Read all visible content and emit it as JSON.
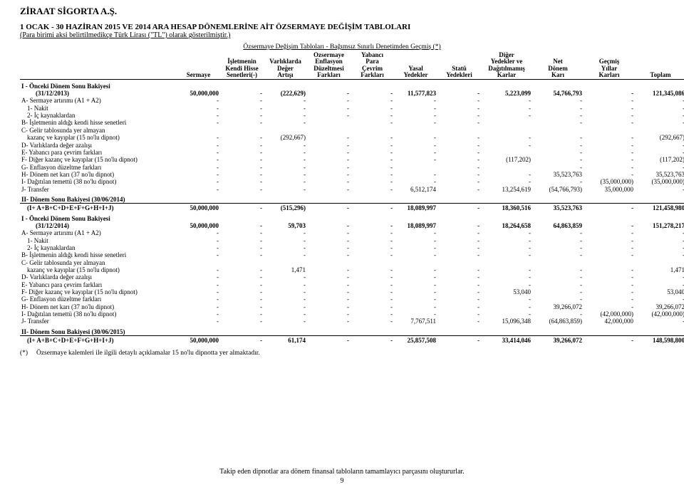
{
  "company": "ZİRAAT SİGORTA A.Ş.",
  "title": "1 OCAK - 30 HAZİRAN 2015 VE 2014 ARA HESAP DÖNEMLERİNE AİT ÖZSERMAYE DEĞİŞİM TABLOLARI",
  "subtitle": "(Para birimi aksi belirtilmedikçe Türk Lirası (\"TL\") olarak gösterilmiştir.)",
  "caption": "Özsermaye Değişim Tabloları - Bağımsız Sınırlı Denetimden Geçmiş (*)",
  "columns": [
    {
      "l1": "",
      "l2": "",
      "l3": "",
      "l4": "Sermaye"
    },
    {
      "l1": "",
      "l2": "İşletmenin",
      "l3": "Kendi Hisse",
      "l4": "Senetleri(-)"
    },
    {
      "l1": "",
      "l2": "Varlıklarda",
      "l3": "Değer",
      "l4": "Artışı"
    },
    {
      "l1": "Özsermaye",
      "l2": "Enflasyon",
      "l3": "Düzeltmesi",
      "l4": "Farkları"
    },
    {
      "l1": "Yabancı",
      "l2": "Para",
      "l3": "Çevrim",
      "l4": "Farkları"
    },
    {
      "l1": "",
      "l2": "",
      "l3": "Yasal",
      "l4": "Yedekler"
    },
    {
      "l1": "",
      "l2": "",
      "l3": "Statü",
      "l4": "Yedekleri"
    },
    {
      "l1": "Diğer",
      "l2": "Yedekler ve",
      "l3": "Dağıtılmamış",
      "l4": "Karlar"
    },
    {
      "l1": "",
      "l2": "Net",
      "l3": "Dönem",
      "l4": "Karı"
    },
    {
      "l1": "",
      "l2": "Geçmiş",
      "l3": "Yıllar",
      "l4": "Karları"
    },
    {
      "l1": "",
      "l2": "",
      "l3": "",
      "l4": "Toplam"
    }
  ],
  "rows": [
    {
      "type": "sec",
      "label": "I -   Önceki Dönem Sonu Bakiyesi"
    },
    {
      "type": "d",
      "indent": 2,
      "bold": true,
      "label": "(31/12/2013)",
      "v": [
        "50,000,000",
        "-",
        "(222,629)",
        "-",
        "-",
        "11,577,823",
        "-",
        "5,223,099",
        "54,766,793",
        "-",
        "121,345,086"
      ]
    },
    {
      "type": "d",
      "label": "A-  Sermaye artırımı (A1 + A2)",
      "v": [
        "-",
        "-",
        "-",
        "-",
        "-",
        "-",
        "-",
        "-",
        "-",
        "-",
        "-"
      ]
    },
    {
      "type": "d",
      "indent": 1,
      "label": "1-   Nakit",
      "v": [
        "-",
        "-",
        "-",
        "-",
        "-",
        "-",
        "-",
        "-",
        "-",
        "-",
        "-"
      ]
    },
    {
      "type": "d",
      "indent": 1,
      "label": "2-   İç kaynaklardan",
      "v": [
        "-",
        "-",
        "-",
        "-",
        "-",
        "-",
        "-",
        "-",
        "-",
        "-",
        "-"
      ]
    },
    {
      "type": "d",
      "label": "B-  İşletmenin aldığı kendi hisse senetleri",
      "v": [
        "-",
        "-",
        "-",
        "",
        "-",
        "-",
        "-",
        "",
        "-",
        "-",
        "-"
      ]
    },
    {
      "type": "d",
      "label": "C-  Gelir tablosunda yer almayan",
      "v": [
        "",
        "",
        "",
        "",
        "",
        "",
        "",
        "",
        "",
        "",
        ""
      ]
    },
    {
      "type": "d",
      "indent": 1,
      "label": "kazanç ve kayıplar (15 no'lu dipnot)",
      "v": [
        "-",
        "-",
        "(292,667)",
        "-",
        "-",
        "-",
        "-",
        "-",
        "-",
        "-",
        "(292,667)"
      ]
    },
    {
      "type": "d",
      "label": "D-  Varlıklarda değer azalışı",
      "v": [
        "-",
        "-",
        "-",
        "-",
        "-",
        "-",
        "-",
        "-",
        "-",
        "-",
        "-"
      ]
    },
    {
      "type": "d",
      "label": "E-  Yabancı para çevrim farkları",
      "v": [
        "-",
        "-",
        "-",
        "-",
        "-",
        "-",
        "-",
        "",
        "-",
        "-",
        "-"
      ]
    },
    {
      "type": "d",
      "label": "F-  Diğer kazanç ve kayıplar (15 no'lu dipnot)",
      "v": [
        "-",
        "-",
        "-",
        "-",
        "-",
        "-",
        "-",
        "(117,202)",
        "-",
        "-",
        "(117,202)"
      ]
    },
    {
      "type": "d",
      "label": "G-  Enflasyon düzeltme farkları",
      "v": [
        "-",
        "-",
        "-",
        "-",
        "-",
        "",
        "-",
        "",
        "-",
        "-",
        "-"
      ]
    },
    {
      "type": "d",
      "label": "H-  Dönem net karı (37 no'lu dipnot)",
      "v": [
        "-",
        "-",
        "-",
        "-",
        "-",
        "-",
        "-",
        "-",
        "35,523,763",
        "-",
        "35,523,763"
      ]
    },
    {
      "type": "d",
      "label": "I-   Dağıtılan temettü (38 no'lu dipnot)",
      "v": [
        "-",
        "-",
        "-",
        "-",
        "-",
        "-",
        "-",
        "-",
        "-",
        "(35,000,000)",
        "(35,000,000)"
      ]
    },
    {
      "type": "d",
      "label": "J-   Transfer",
      "v": [
        "-",
        "-",
        "-",
        "-",
        "-",
        "6,512,174",
        "-",
        "13,254,619",
        "(54,766,793)",
        "35,000,000",
        "-"
      ]
    },
    {
      "type": "sec",
      "label": "II-  Dönem Sonu Bakiyesi (30/06/2014)"
    },
    {
      "type": "sum",
      "indent": 1,
      "label": "(I+ A+B+C+D+E+F+G+H+I+J)",
      "v": [
        "50,000,000",
        "-",
        "(515,296)",
        "-",
        "-",
        "18,089,997",
        "-",
        "18,360,516",
        "35,523,763",
        "-",
        "121,458,980"
      ]
    },
    {
      "type": "sec",
      "label": "I -   Önceki Dönem Sonu Bakiyesi"
    },
    {
      "type": "d",
      "indent": 2,
      "bold": true,
      "label": "(31/12/2014)",
      "v": [
        "50,000,000",
        "-",
        "59,703",
        "-",
        "-",
        "18,089,997",
        "-",
        "18,264,658",
        "64,863,859",
        "-",
        "151,278,217"
      ]
    },
    {
      "type": "d",
      "label": "A-  Sermaye artırımı (A1 + A2)",
      "v": [
        "-",
        "-",
        "-",
        "-",
        "-",
        "-",
        "-",
        "-",
        "-",
        "-",
        "-"
      ]
    },
    {
      "type": "d",
      "indent": 1,
      "label": "1-   Nakit",
      "v": [
        "-",
        "-",
        "-",
        "-",
        "-",
        "-",
        "-",
        "-",
        "-",
        "-",
        "-"
      ]
    },
    {
      "type": "d",
      "indent": 1,
      "label": "2-   İç kaynaklardan",
      "v": [
        "-",
        "-",
        "-",
        "-",
        "-",
        "-",
        "-",
        "-",
        "-",
        "-",
        "-"
      ]
    },
    {
      "type": "d",
      "label": "B-  İşletmenin aldığı kendi hisse senetleri",
      "v": [
        "-",
        "-",
        "-",
        "-",
        "-",
        "-",
        "-",
        "-",
        "-",
        "-",
        "-"
      ]
    },
    {
      "type": "d",
      "label": "C-  Gelir tablosunda yer almayan",
      "v": [
        "",
        "",
        "",
        "",
        "",
        "",
        "",
        "",
        "",
        "",
        ""
      ]
    },
    {
      "type": "d",
      "indent": 1,
      "label": "kazanç ve kayıplar (15 no'lu dipnot)",
      "v": [
        "-",
        "-",
        "1,471",
        "-",
        "-",
        "-",
        "-",
        "-",
        "-",
        "-",
        "1,471"
      ]
    },
    {
      "type": "d",
      "label": "D-  Varlıklarda değer azalışı",
      "v": [
        "-",
        "-",
        "-",
        "-",
        "-",
        "-",
        "-",
        "-",
        "-",
        "-",
        "-"
      ]
    },
    {
      "type": "d",
      "label": "E-  Yabancı para çevrim farkları",
      "v": [
        "-",
        "-",
        "-",
        "-",
        "-",
        "-",
        "-",
        "-",
        "-",
        "-",
        "-"
      ]
    },
    {
      "type": "d",
      "label": "F-  Diğer kazanç ve kayıplar (15 no'lu dipnot)",
      "v": [
        "-",
        "-",
        "-",
        "-",
        "-",
        "-",
        "-",
        "53,040",
        "-",
        "-",
        "53,040"
      ]
    },
    {
      "type": "d",
      "label": "G-  Enflasyon düzeltme farkları",
      "v": [
        "-",
        "-",
        "-",
        "-",
        "-",
        "-",
        "-",
        "-",
        "-",
        "-",
        "-"
      ]
    },
    {
      "type": "d",
      "label": "H-  Dönem net karı (37 no'lu dipnot)",
      "v": [
        "-",
        "-",
        "-",
        "-",
        "-",
        "-",
        "-",
        "-",
        "39,266,072",
        "-",
        "39,266,072"
      ]
    },
    {
      "type": "d",
      "label": "I-   Dağıtılan temettü (38 no'lu dipnot)",
      "v": [
        "-",
        "-",
        "-",
        "-",
        "-",
        "-",
        "-",
        "-",
        "-",
        "(42,000,000)",
        "(42,000,000)"
      ]
    },
    {
      "type": "d",
      "label": "J-   Transfer",
      "v": [
        "-",
        "-",
        "-",
        "-",
        "-",
        "7,767,511",
        "-",
        "15,096,348",
        "(64,863,859)",
        "42,000,000",
        "-"
      ]
    },
    {
      "type": "sec",
      "label": "II-  Dönem Sonu Bakiyesi (30/06/2015)"
    },
    {
      "type": "sum",
      "indent": 1,
      "label": "(I+ A+B+C+D+E+F+G+H+I+J)",
      "v": [
        "50,000,000",
        "-",
        "61,174",
        "-",
        "-",
        "25,857,508",
        "-",
        "33,414,046",
        "39,266,072",
        "-",
        "148,598,800"
      ]
    }
  ],
  "note_prefix": "(*)",
  "note": "Özsermaye kalemleri ile ilgili detaylı açıklamalar 15 no'lu dipnotta yer almaktadır.",
  "footer": "Takip eden dipnotlar ara dönem finansal tabloların tamamlayıcı parçasını oluştururlar.",
  "pagenum": "9"
}
